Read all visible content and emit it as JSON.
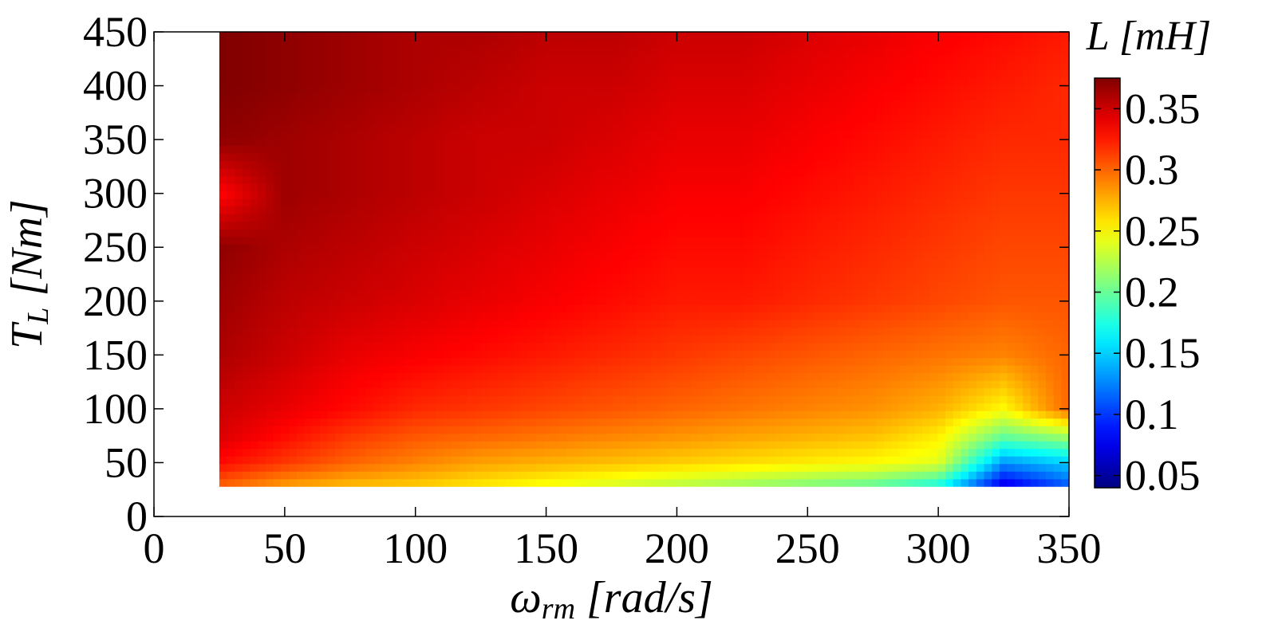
{
  "chart_data": {
    "type": "heatmap",
    "title": "",
    "xlabel": {
      "main": "ω",
      "sub": "rm",
      "unit": " [rad/s]"
    },
    "ylabel": {
      "main": "T",
      "sub": "L",
      "unit": " [Nm]"
    },
    "colorbar_label": "L [mH]",
    "xlim": [
      0,
      350
    ],
    "ylim": [
      0,
      450
    ],
    "x_ticks": [
      "0",
      "50",
      "100",
      "150",
      "200",
      "250",
      "300",
      "350"
    ],
    "y_ticks": [
      "0",
      "50",
      "100",
      "150",
      "200",
      "250",
      "300",
      "350",
      "400",
      "450"
    ],
    "colorbar_ticks": [
      "0.05",
      "0.1",
      "0.15",
      "0.2",
      "0.25",
      "0.3",
      "0.35"
    ],
    "colorbar_range": [
      0.04,
      0.375
    ],
    "data_extent": {
      "x": [
        25,
        350
      ],
      "y": [
        28,
        450
      ]
    },
    "x": [
      25,
      50,
      75,
      100,
      125,
      150,
      175,
      200,
      225,
      250,
      275,
      300,
      325,
      350
    ],
    "y": [
      28,
      50,
      75,
      100,
      150,
      200,
      250,
      300,
      350,
      400,
      450
    ],
    "z": [
      [
        0.3,
        0.28,
        0.27,
        0.265,
        0.255,
        0.245,
        0.235,
        0.225,
        0.215,
        0.205,
        0.195,
        0.17,
        0.07,
        0.11
      ],
      [
        0.33,
        0.315,
        0.3,
        0.29,
        0.28,
        0.275,
        0.27,
        0.265,
        0.26,
        0.255,
        0.25,
        0.24,
        0.13,
        0.15
      ],
      [
        0.345,
        0.33,
        0.315,
        0.305,
        0.3,
        0.295,
        0.29,
        0.285,
        0.28,
        0.275,
        0.27,
        0.255,
        0.2,
        0.22
      ],
      [
        0.35,
        0.34,
        0.33,
        0.32,
        0.315,
        0.31,
        0.305,
        0.3,
        0.295,
        0.29,
        0.285,
        0.275,
        0.25,
        0.3
      ],
      [
        0.36,
        0.35,
        0.34,
        0.335,
        0.33,
        0.325,
        0.32,
        0.315,
        0.31,
        0.305,
        0.3,
        0.295,
        0.29,
        0.3
      ],
      [
        0.365,
        0.355,
        0.35,
        0.345,
        0.34,
        0.335,
        0.33,
        0.325,
        0.325,
        0.32,
        0.315,
        0.31,
        0.305,
        0.305
      ],
      [
        0.37,
        0.36,
        0.355,
        0.35,
        0.345,
        0.34,
        0.335,
        0.33,
        0.33,
        0.325,
        0.32,
        0.315,
        0.31,
        0.31
      ],
      [
        0.33,
        0.365,
        0.36,
        0.355,
        0.35,
        0.345,
        0.34,
        0.335,
        0.335,
        0.33,
        0.325,
        0.32,
        0.315,
        0.315
      ],
      [
        0.37,
        0.365,
        0.36,
        0.355,
        0.35,
        0.35,
        0.345,
        0.34,
        0.34,
        0.335,
        0.33,
        0.325,
        0.32,
        0.32
      ],
      [
        0.375,
        0.37,
        0.365,
        0.36,
        0.355,
        0.35,
        0.35,
        0.345,
        0.345,
        0.34,
        0.335,
        0.33,
        0.325,
        0.32
      ],
      [
        0.375,
        0.37,
        0.365,
        0.36,
        0.36,
        0.355,
        0.355,
        0.35,
        0.35,
        0.345,
        0.34,
        0.335,
        0.33,
        0.325
      ]
    ],
    "colormap": "jet",
    "grid": false,
    "legend": "colorbar-right"
  }
}
